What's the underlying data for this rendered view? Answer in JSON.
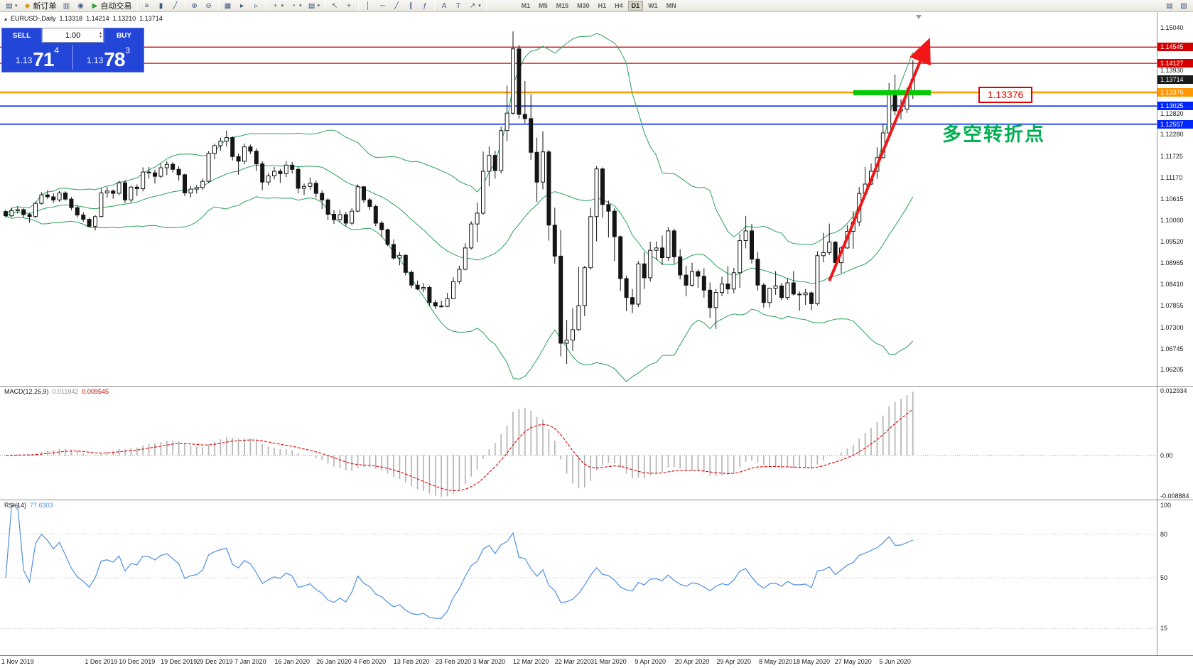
{
  "toolbar": {
    "items": [
      {
        "name": "new-chart-button",
        "glyph": "▤",
        "caret": true
      },
      {
        "name": "new-order-button",
        "glyph": "◆",
        "glyph_color": "#d4a017",
        "label": "新订单"
      },
      {
        "name": "market-watch-button",
        "glyph": "▥"
      },
      {
        "name": "navigator-button",
        "glyph": "◉"
      },
      {
        "name": "auto-trading-button",
        "glyph": "▶",
        "glyph_color": "#2e9e3e",
        "label": "自动交易"
      },
      {
        "sep": true
      },
      {
        "name": "bar-chart-button",
        "glyph": "≡"
      },
      {
        "name": "candlestick-chart-button",
        "glyph": "▮"
      },
      {
        "name": "line-chart-button",
        "glyph": "╱"
      },
      {
        "sep": true
      },
      {
        "name": "zoom-in-button",
        "glyph": "⊕"
      },
      {
        "name": "zoom-out-button",
        "glyph": "⊖"
      },
      {
        "sep": true
      },
      {
        "name": "tile-windows-button",
        "glyph": "▦"
      },
      {
        "name": "auto-scroll-button",
        "glyph": "▸"
      },
      {
        "name": "chart-shift-button",
        "glyph": "▹"
      },
      {
        "sep": true
      },
      {
        "name": "indicators-button",
        "glyph": "+",
        "glyph_color": "#2e9e3e",
        "caret": true
      },
      {
        "name": "periods-button",
        "glyph": "◔",
        "glyph_color": "#2b6cd4",
        "caret": true
      },
      {
        "name": "templates-button",
        "glyph": "▤",
        "caret": true
      },
      {
        "sep": true
      },
      {
        "name": "cursor-button",
        "glyph": "↖"
      },
      {
        "name": "crosshair-button",
        "glyph": "+"
      },
      {
        "sep": true
      },
      {
        "name": "vertical-line-button",
        "glyph": "│"
      },
      {
        "name": "horizontal-line-button",
        "glyph": "─"
      },
      {
        "name": "trendline-button",
        "glyph": "╱"
      },
      {
        "name": "channel-button",
        "glyph": "∥"
      },
      {
        "name": "fibonacci-button",
        "glyph": "ƒ"
      },
      {
        "sep": true
      },
      {
        "name": "text-button",
        "glyph": "A"
      },
      {
        "name": "text-label-button",
        "glyph": "T"
      },
      {
        "name": "arrows-button",
        "glyph": "↗",
        "caret": true
      },
      {
        "sep": true
      }
    ],
    "timeframes": [
      "M1",
      "M5",
      "M15",
      "M30",
      "H1",
      "H4",
      "D1",
      "W1",
      "MN"
    ],
    "active_timeframe": "D1",
    "right_items": [
      {
        "name": "print-button",
        "glyph": "▤"
      },
      {
        "name": "preview-button",
        "glyph": "▧"
      }
    ]
  },
  "chart": {
    "title": {
      "symbol_period": "EURUSD-,Daily",
      "open": "1.13318",
      "high": "1.14214",
      "low": "1.13210",
      "close": "1.13714"
    },
    "annotation": {
      "text": "多空转折点",
      "color": "#00b050"
    },
    "price_callout": {
      "text": "1.13376",
      "color": "#e00000"
    },
    "current_price_tag": {
      "label": "1.13714",
      "price": 1.13714,
      "bg": "#1a1a1a"
    },
    "levels": [
      {
        "price": 1.14545,
        "label": "1.14545",
        "color": "#d40000",
        "width": 1.3
      },
      {
        "price": 1.14127,
        "label": "1.14127",
        "color": "#d40000",
        "width": 1.3
      },
      {
        "price": 1.13376,
        "label": "1.13376",
        "color": "#ff9800",
        "width": 2.5
      },
      {
        "price": 1.13025,
        "label": "1.13025",
        "color": "#0026ff",
        "width": 1.6
      },
      {
        "price": 1.12557,
        "label": "1.12557",
        "color": "#0026ff",
        "width": 1.6
      }
    ],
    "highlight_bar": {
      "price": 1.1337,
      "x1_index": 142,
      "x2_index": 155,
      "color": "#00cc00"
    },
    "trend_arrow": {
      "x1_index": 138,
      "price1": 1.0851,
      "x2_index": 154.4,
      "price2": 1.1462,
      "color": "#f21616",
      "width": 4
    },
    "axis_labels": [
      "1.15040",
      "1.14485",
      "1.13930",
      "1.13375",
      "1.12820",
      "1.12280",
      "1.11725",
      "1.11170",
      "1.10615",
      "1.10060",
      "1.09520",
      "1.08965",
      "1.08410",
      "1.07855",
      "1.07300",
      "1.06745",
      "1.06205"
    ]
  },
  "trade_panel": {
    "sell_label": "SELL",
    "buy_label": "BUY",
    "volume": "1.00",
    "sell_price": {
      "prefix": "1.13",
      "big": "71",
      "pip": "4"
    },
    "buy_price": {
      "prefix": "1.13",
      "big": "78",
      "pip": "3"
    }
  },
  "macd": {
    "header": "MACD(12,26,9)",
    "value_main": "0.011942",
    "value_signal": "0.009545",
    "axis": [
      "0.012934",
      "0.00",
      "-0.008884"
    ]
  },
  "rsi": {
    "header": "RSI(14)",
    "value": "77.6303",
    "axis": [
      "100",
      "80",
      "50",
      "15"
    ],
    "levels": [
      80,
      50,
      15
    ]
  },
  "chart_data": {
    "type": "candlestick",
    "symbol": "EURUSD",
    "period": "Daily",
    "bollinger": {
      "period": 20,
      "deviation": 2
    },
    "macd": {
      "fast": 12,
      "slow": 26,
      "signal": 9
    },
    "rsi_period": 14,
    "date_labels": [
      {
        "label": "1 Nov 2019",
        "index": 2
      },
      {
        "label": "1 Dec 2019",
        "index": 16
      },
      {
        "label": "10 Dec 2019",
        "index": 22
      },
      {
        "label": "19 Dec 2019",
        "index": 29
      },
      {
        "label": "29 Dec 2019",
        "index": 35
      },
      {
        "label": "7 Jan 2020",
        "index": 41
      },
      {
        "label": "16 Jan 2020",
        "index": 48
      },
      {
        "label": "26 Jan 2020",
        "index": 55
      },
      {
        "label": "4 Feb 2020",
        "index": 61
      },
      {
        "label": "13 Feb 2020",
        "index": 68
      },
      {
        "label": "23 Feb 2020",
        "index": 75
      },
      {
        "label": "3 Mar 2020",
        "index": 81
      },
      {
        "label": "12 Mar 2020",
        "index": 88
      },
      {
        "label": "22 Mar 2020",
        "index": 95
      },
      {
        "label": "31 Mar 2020",
        "index": 101
      },
      {
        "label": "9 Apr 2020",
        "index": 108
      },
      {
        "label": "20 Apr 2020",
        "index": 115
      },
      {
        "label": "29 Apr 2020",
        "index": 122
      },
      {
        "label": "8 May 2020",
        "index": 129
      },
      {
        "label": "18 May 2020",
        "index": 135
      },
      {
        "label": "27 May 2020",
        "index": 142
      },
      {
        "label": "5 Jun 2020",
        "index": 149
      }
    ],
    "candles": [
      [
        1.103,
        1.1035,
        1.1014,
        1.1019
      ],
      [
        1.1019,
        1.104,
        1.1016,
        1.1032
      ],
      [
        1.1032,
        1.1043,
        1.1025,
        1.1035
      ],
      [
        1.1035,
        1.1038,
        1.1015,
        1.1022
      ],
      [
        1.1022,
        1.1027,
        1.1001,
        1.1017
      ],
      [
        1.1017,
        1.1056,
        1.1013,
        1.1051
      ],
      [
        1.1051,
        1.108,
        1.1048,
        1.1073
      ],
      [
        1.1073,
        1.1085,
        1.1062,
        1.1068
      ],
      [
        1.1068,
        1.1077,
        1.1052,
        1.106
      ],
      [
        1.106,
        1.1083,
        1.1055,
        1.1078
      ],
      [
        1.1078,
        1.1082,
        1.1058,
        1.1062
      ],
      [
        1.1062,
        1.1068,
        1.1033,
        1.104
      ],
      [
        1.104,
        1.1047,
        1.1014,
        1.1021
      ],
      [
        1.1021,
        1.1028,
        1.1003,
        1.101
      ],
      [
        1.101,
        1.1014,
        1.0989,
        1.0992
      ],
      [
        1.0992,
        1.1021,
        1.0981,
        1.1017
      ],
      [
        1.1017,
        1.109,
        1.1015,
        1.1078
      ],
      [
        1.1078,
        1.1094,
        1.1066,
        1.1083
      ],
      [
        1.1083,
        1.1087,
        1.1063,
        1.1077
      ],
      [
        1.1077,
        1.111,
        1.1072,
        1.1104
      ],
      [
        1.1104,
        1.1112,
        1.1052,
        1.106
      ],
      [
        1.106,
        1.1097,
        1.1053,
        1.1093
      ],
      [
        1.1093,
        1.11,
        1.107,
        1.1089
      ],
      [
        1.1089,
        1.1144,
        1.1082,
        1.1132
      ],
      [
        1.1132,
        1.1145,
        1.1115,
        1.113
      ],
      [
        1.113,
        1.1138,
        1.1102,
        1.1121
      ],
      [
        1.1121,
        1.1154,
        1.1116,
        1.1143
      ],
      [
        1.1143,
        1.116,
        1.1124,
        1.1152
      ],
      [
        1.1152,
        1.1158,
        1.113,
        1.1139
      ],
      [
        1.1139,
        1.1147,
        1.111,
        1.1125
      ],
      [
        1.1125,
        1.1128,
        1.107,
        1.1078
      ],
      [
        1.1078,
        1.1096,
        1.1066,
        1.1088
      ],
      [
        1.1088,
        1.1099,
        1.1077,
        1.1092
      ],
      [
        1.1092,
        1.1115,
        1.1086,
        1.1108
      ],
      [
        1.1108,
        1.1186,
        1.1104,
        1.118
      ],
      [
        1.118,
        1.1205,
        1.1165,
        1.12
      ],
      [
        1.12,
        1.1221,
        1.1187,
        1.1212
      ],
      [
        1.1212,
        1.1239,
        1.1198,
        1.1221
      ],
      [
        1.1221,
        1.1224,
        1.1162,
        1.1172
      ],
      [
        1.1172,
        1.118,
        1.1125,
        1.116
      ],
      [
        1.116,
        1.1205,
        1.1152,
        1.1197
      ],
      [
        1.1197,
        1.1203,
        1.1178,
        1.1186
      ],
      [
        1.1186,
        1.1193,
        1.1135,
        1.1153
      ],
      [
        1.1153,
        1.116,
        1.1085,
        1.1106
      ],
      [
        1.1106,
        1.113,
        1.1098,
        1.1122
      ],
      [
        1.1122,
        1.1145,
        1.1113,
        1.1134
      ],
      [
        1.1134,
        1.114,
        1.1104,
        1.1128
      ],
      [
        1.1128,
        1.116,
        1.1119,
        1.115
      ],
      [
        1.115,
        1.1158,
        1.1128,
        1.1139
      ],
      [
        1.1139,
        1.1145,
        1.1077,
        1.109
      ],
      [
        1.109,
        1.1102,
        1.1073,
        1.1095
      ],
      [
        1.1095,
        1.1118,
        1.1087,
        1.1103
      ],
      [
        1.1103,
        1.111,
        1.1066,
        1.1077
      ],
      [
        1.1077,
        1.1085,
        1.1036,
        1.106
      ],
      [
        1.106,
        1.1065,
        1.1008,
        1.1023
      ],
      [
        1.1023,
        1.1034,
        1.0998,
        1.1009
      ],
      [
        1.1009,
        1.1035,
        1.1002,
        1.1022
      ],
      [
        1.1022,
        1.1029,
        1.0992,
        1.1
      ],
      [
        1.1,
        1.1039,
        1.0995,
        1.1031
      ],
      [
        1.1031,
        1.11,
        1.1028,
        1.1094
      ],
      [
        1.1094,
        1.1096,
        1.1052,
        1.106
      ],
      [
        1.106,
        1.1065,
        1.1033,
        1.1043
      ],
      [
        1.1043,
        1.1048,
        1.0992,
        1.1
      ],
      [
        1.1,
        1.1006,
        1.0964,
        1.0983
      ],
      [
        1.0983,
        1.0986,
        1.0941,
        1.0945
      ],
      [
        1.0945,
        1.0958,
        1.0905,
        1.091
      ],
      [
        1.091,
        1.0925,
        1.0891,
        1.0917
      ],
      [
        1.0917,
        1.092,
        1.0865,
        1.0873
      ],
      [
        1.0873,
        1.0878,
        1.0832,
        1.084
      ],
      [
        1.084,
        1.0852,
        1.0827,
        1.083
      ],
      [
        1.083,
        1.0845,
        1.0822,
        1.0834
      ],
      [
        1.0834,
        1.0838,
        1.0786,
        1.0795
      ],
      [
        1.0795,
        1.0802,
        1.0778,
        1.0786
      ],
      [
        1.0786,
        1.08,
        1.0782,
        1.0785
      ],
      [
        1.0785,
        1.082,
        1.0783,
        1.0805
      ],
      [
        1.0805,
        1.086,
        1.0805,
        1.0849
      ],
      [
        1.0849,
        1.089,
        1.0843,
        1.0881
      ],
      [
        1.0881,
        1.0948,
        1.0878,
        1.0936
      ],
      [
        1.0936,
        1.1005,
        1.0932,
        1.0998
      ],
      [
        1.0998,
        1.1053,
        1.0951,
        1.1026
      ],
      [
        1.1026,
        1.1185,
        1.1021,
        1.1134
      ],
      [
        1.1134,
        1.1198,
        1.1095,
        1.1175
      ],
      [
        1.1175,
        1.1187,
        1.1115,
        1.1136
      ],
      [
        1.1136,
        1.1249,
        1.1128,
        1.1239
      ],
      [
        1.1239,
        1.1355,
        1.1212,
        1.1284
      ],
      [
        1.1284,
        1.1495,
        1.128,
        1.145
      ],
      [
        1.145,
        1.146,
        1.127,
        1.1281
      ],
      [
        1.1281,
        1.1367,
        1.1258,
        1.127
      ],
      [
        1.127,
        1.1333,
        1.1163,
        1.1183
      ],
      [
        1.1183,
        1.1221,
        1.1055,
        1.1106
      ],
      [
        1.1106,
        1.1237,
        1.1087,
        1.1184
      ],
      [
        1.1184,
        1.1189,
        1.0955,
        1.0995
      ],
      [
        1.0995,
        1.104,
        1.0895,
        1.0915
      ],
      [
        1.0915,
        1.0982,
        1.0656,
        1.069
      ],
      [
        1.069,
        1.075,
        1.0636,
        1.0698
      ],
      [
        1.0698,
        1.078,
        1.067,
        1.0725
      ],
      [
        1.0725,
        1.0888,
        1.0722,
        1.0787
      ],
      [
        1.0787,
        1.089,
        1.076,
        1.0885
      ],
      [
        1.0885,
        1.104,
        1.088,
        1.1017
      ],
      [
        1.1017,
        1.1147,
        1.0953,
        1.114
      ],
      [
        1.114,
        1.1144,
        1.1014,
        1.1048
      ],
      [
        1.1048,
        1.1058,
        1.0963,
        1.1031
      ],
      [
        1.1031,
        1.1038,
        1.0902,
        1.0965
      ],
      [
        1.0965,
        1.0968,
        1.0825,
        1.0857
      ],
      [
        1.0857,
        1.0865,
        1.0773,
        1.0808
      ],
      [
        1.0808,
        1.083,
        1.0768,
        1.0791
      ],
      [
        1.0791,
        1.0902,
        1.0783,
        1.0895
      ],
      [
        1.0895,
        1.0925,
        1.083,
        1.0859
      ],
      [
        1.0859,
        1.0952,
        1.0849,
        1.093
      ],
      [
        1.093,
        1.0953,
        1.0905,
        1.0936
      ],
      [
        1.0936,
        1.0968,
        1.0892,
        1.0911
      ],
      [
        1.0911,
        1.099,
        1.0903,
        1.098
      ],
      [
        1.098,
        1.0986,
        1.0895,
        1.0913
      ],
      [
        1.0913,
        1.0933,
        1.0855,
        1.0866
      ],
      [
        1.0866,
        1.089,
        1.0811,
        1.084
      ],
      [
        1.084,
        1.0898,
        1.0836,
        1.0875
      ],
      [
        1.0875,
        1.088,
        1.0833,
        1.0863
      ],
      [
        1.0863,
        1.0884,
        1.0808,
        1.0827
      ],
      [
        1.0827,
        1.0847,
        1.0756,
        1.0782
      ],
      [
        1.0782,
        1.083,
        1.0727,
        1.0821
      ],
      [
        1.0821,
        1.0861,
        1.0812,
        1.0843
      ],
      [
        1.0843,
        1.0889,
        1.0816,
        1.083
      ],
      [
        1.083,
        1.0885,
        1.0819,
        1.0872
      ],
      [
        1.0872,
        1.0972,
        1.0833,
        1.0955
      ],
      [
        1.0955,
        1.1019,
        1.0935,
        1.098
      ],
      [
        1.098,
        1.0998,
        1.0896,
        1.0907
      ],
      [
        1.0907,
        1.0926,
        1.0826,
        1.084
      ],
      [
        1.084,
        1.0845,
        1.0782,
        1.0795
      ],
      [
        1.0795,
        1.0834,
        1.0782,
        1.0832
      ],
      [
        1.0832,
        1.0876,
        1.0815,
        1.0838
      ],
      [
        1.0838,
        1.0846,
        1.0801,
        1.0808
      ],
      [
        1.0808,
        1.0858,
        1.0802,
        1.0846
      ],
      [
        1.0846,
        1.0876,
        1.0813,
        1.0817
      ],
      [
        1.0817,
        1.0824,
        1.0774,
        1.0815
      ],
      [
        1.0815,
        1.083,
        1.0789,
        1.082
      ],
      [
        1.082,
        1.0824,
        1.0775,
        1.0792
      ],
      [
        1.0792,
        1.0927,
        1.0788,
        1.0916
      ],
      [
        1.0916,
        1.0975,
        1.0899,
        1.0924
      ],
      [
        1.0924,
        1.0999,
        1.0918,
        1.0951
      ],
      [
        1.0951,
        1.0954,
        1.0885,
        1.0898
      ],
      [
        1.0898,
        1.094,
        1.0871,
        1.0936
      ],
      [
        1.0936,
        1.0995,
        1.0934,
        1.0979
      ],
      [
        1.0979,
        1.1031,
        1.0934,
        1.1003
      ],
      [
        1.1003,
        1.1093,
        1.0992,
        1.1077
      ],
      [
        1.1077,
        1.1145,
        1.1068,
        1.1101
      ],
      [
        1.1101,
        1.1154,
        1.1098,
        1.1134
      ],
      [
        1.1134,
        1.1196,
        1.1115,
        1.1169
      ],
      [
        1.1169,
        1.1257,
        1.1167,
        1.1233
      ],
      [
        1.1233,
        1.1362,
        1.1232,
        1.1339
      ],
      [
        1.1339,
        1.1384,
        1.1278,
        1.129
      ],
      [
        1.129,
        1.132,
        1.1268,
        1.1294
      ],
      [
        1.1294,
        1.135,
        1.1285,
        1.1332
      ],
      [
        1.13318,
        1.14214,
        1.1321,
        1.13714
      ]
    ]
  }
}
